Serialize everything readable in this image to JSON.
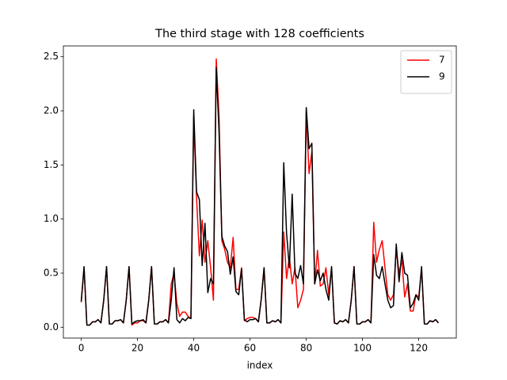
{
  "chart_data": {
    "type": "line",
    "title": "The third stage with 128 coefficients",
    "x_label": "index",
    "x": [
      0,
      1,
      2,
      3,
      4,
      5,
      6,
      7,
      8,
      9,
      10,
      11,
      12,
      13,
      14,
      15,
      16,
      17,
      18,
      19,
      20,
      21,
      22,
      23,
      24,
      25,
      26,
      27,
      28,
      29,
      30,
      31,
      32,
      33,
      34,
      35,
      36,
      37,
      38,
      39,
      40,
      41,
      42,
      43,
      44,
      45,
      46,
      47,
      48,
      49,
      50,
      51,
      52,
      53,
      54,
      55,
      56,
      57,
      58,
      59,
      60,
      61,
      62,
      63,
      64,
      65,
      66,
      67,
      68,
      69,
      70,
      71,
      72,
      73,
      74,
      75,
      76,
      77,
      78,
      79,
      80,
      81,
      82,
      83,
      84,
      85,
      86,
      87,
      88,
      89,
      90,
      91,
      92,
      93,
      94,
      95,
      96,
      97,
      98,
      99,
      100,
      101,
      102,
      103,
      104,
      105,
      106,
      107,
      108,
      109,
      110,
      111,
      112,
      113,
      114,
      115,
      116,
      117,
      118,
      119,
      120,
      121,
      122,
      123,
      124,
      125,
      126,
      127
    ],
    "series": [
      {
        "name": "7",
        "color": "#ff0000",
        "values": [
          0.23,
          0.55,
          0.02,
          0.02,
          0.05,
          0.05,
          0.07,
          0.04,
          0.25,
          0.56,
          0.03,
          0.03,
          0.06,
          0.06,
          0.07,
          0.04,
          0.25,
          0.56,
          0.02,
          0.04,
          0.04,
          0.06,
          0.06,
          0.04,
          0.25,
          0.56,
          0.03,
          0.03,
          0.05,
          0.05,
          0.07,
          0.04,
          0.4,
          0.5,
          0.22,
          0.1,
          0.14,
          0.14,
          0.1,
          0.08,
          1.95,
          1.2,
          0.66,
          0.99,
          0.6,
          0.8,
          0.55,
          0.25,
          2.48,
          1.95,
          0.8,
          0.72,
          0.6,
          0.55,
          0.83,
          0.35,
          0.35,
          0.55,
          0.06,
          0.08,
          0.09,
          0.09,
          0.08,
          0.05,
          0.26,
          0.55,
          0.04,
          0.04,
          0.06,
          0.05,
          0.07,
          0.04,
          0.88,
          0.45,
          0.65,
          0.4,
          0.55,
          0.18,
          0.25,
          0.35,
          2.0,
          1.42,
          1.62,
          0.4,
          0.71,
          0.38,
          0.4,
          0.55,
          0.3,
          0.55,
          0.04,
          0.03,
          0.06,
          0.05,
          0.07,
          0.04,
          0.25,
          0.56,
          0.03,
          0.03,
          0.05,
          0.05,
          0.07,
          0.04,
          0.97,
          0.6,
          0.72,
          0.8,
          0.55,
          0.3,
          0.25,
          0.3,
          0.72,
          0.5,
          0.62,
          0.28,
          0.4,
          0.15,
          0.15,
          0.3,
          0.28,
          0.54,
          0.03,
          0.03,
          0.06,
          0.05,
          0.07,
          0.04
        ]
      },
      {
        "name": "9",
        "color": "#000000",
        "values": [
          0.24,
          0.56,
          0.02,
          0.02,
          0.05,
          0.05,
          0.07,
          0.04,
          0.25,
          0.56,
          0.03,
          0.03,
          0.06,
          0.06,
          0.07,
          0.04,
          0.25,
          0.56,
          0.03,
          0.05,
          0.06,
          0.06,
          0.07,
          0.04,
          0.25,
          0.56,
          0.03,
          0.03,
          0.05,
          0.05,
          0.07,
          0.04,
          0.25,
          0.55,
          0.07,
          0.04,
          0.08,
          0.06,
          0.09,
          0.08,
          2.01,
          1.25,
          1.18,
          0.57,
          0.96,
          0.32,
          0.45,
          0.4,
          2.4,
          1.8,
          0.84,
          0.75,
          0.7,
          0.49,
          0.65,
          0.33,
          0.3,
          0.54,
          0.07,
          0.05,
          0.07,
          0.07,
          0.08,
          0.05,
          0.26,
          0.55,
          0.04,
          0.04,
          0.06,
          0.05,
          0.07,
          0.04,
          1.52,
          0.87,
          0.55,
          1.23,
          0.5,
          0.45,
          0.57,
          0.4,
          2.03,
          1.65,
          1.7,
          0.4,
          0.53,
          0.43,
          0.5,
          0.35,
          0.25,
          0.56,
          0.04,
          0.03,
          0.06,
          0.05,
          0.07,
          0.04,
          0.25,
          0.56,
          0.03,
          0.03,
          0.05,
          0.05,
          0.07,
          0.04,
          0.67,
          0.48,
          0.45,
          0.56,
          0.4,
          0.25,
          0.18,
          0.2,
          0.77,
          0.42,
          0.69,
          0.5,
          0.48,
          0.18,
          0.22,
          0.3,
          0.25,
          0.56,
          0.03,
          0.03,
          0.06,
          0.05,
          0.07,
          0.04
        ]
      }
    ],
    "xlim": [
      -6.35,
      133.35
    ],
    "xticks": [
      0,
      20,
      40,
      60,
      80,
      100,
      120
    ],
    "ylim": [
      -0.1,
      2.6
    ],
    "yticks": [
      {
        "value": 0,
        "label": "0.0"
      },
      0.5,
      {
        "value": 1,
        "label": "1.0"
      },
      1.5,
      {
        "value": 2,
        "label": "2.0"
      },
      2.5
    ],
    "legend": "upper right",
    "grid": false
  }
}
